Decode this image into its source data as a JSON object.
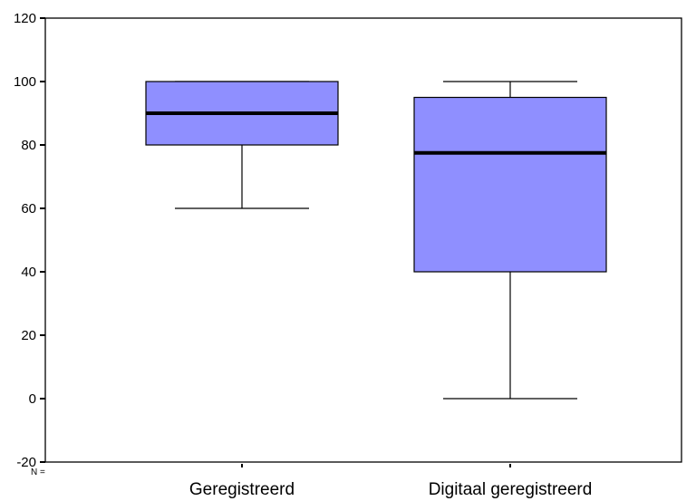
{
  "chart_data": {
    "type": "boxplot",
    "title": "",
    "xlabel": "",
    "ylabel": "",
    "ylim": [
      -20,
      120
    ],
    "yticks": [
      -20,
      0,
      20,
      40,
      60,
      80,
      100,
      120
    ],
    "grid": false,
    "categories": [
      "Geregistreerd",
      "Digitaal geregistreerd"
    ],
    "boxes": [
      {
        "category": "Geregistreerd",
        "min": 60,
        "q1": 80,
        "median": 90,
        "q3": 100,
        "max": 100
      },
      {
        "category": "Digitaal geregistreerd",
        "min": 0,
        "q1": 40,
        "median": 77.5,
        "q3": 95,
        "max": 100
      }
    ],
    "n_label": "N =",
    "box_color": "#8f8fff",
    "median_color": "#000000"
  }
}
